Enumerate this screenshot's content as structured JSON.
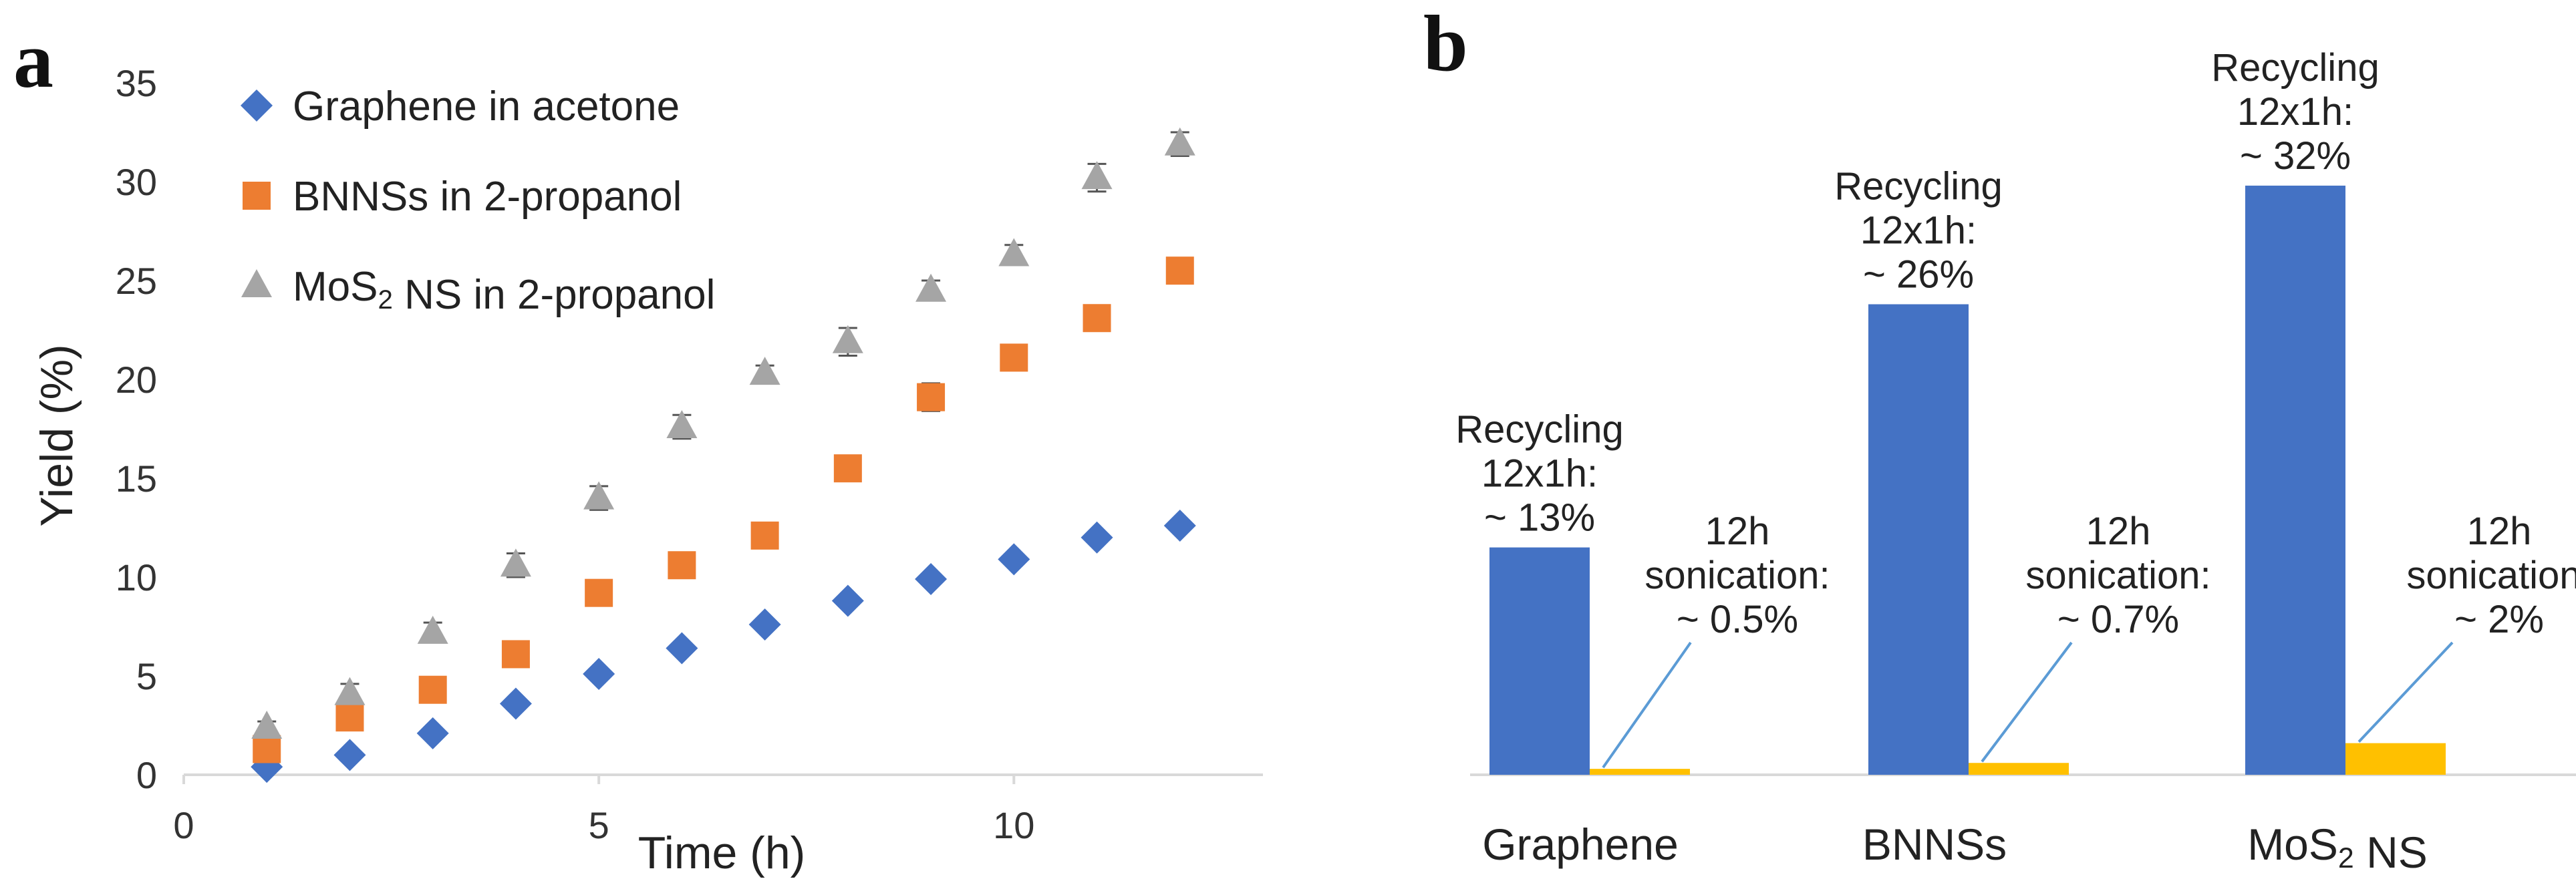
{
  "panel_a_label": "a",
  "panel_b_label": "b",
  "colors": {
    "graphene": "#4472C4",
    "bnns": "#ED7D31",
    "mos2": "#A5A5A5",
    "recycling_bar": "#4472C4",
    "sonication_bar": "#FFC000",
    "leader_line": "#5B9BD5",
    "axis": "#D9D9D9",
    "text": "#222222"
  },
  "chart_data": [
    {
      "type": "scatter",
      "xlabel": "Time (h)",
      "ylabel": "Yield (%)",
      "xlim": [
        0,
        13
      ],
      "ylim": [
        0,
        35
      ],
      "xticks": [
        0,
        5,
        10
      ],
      "yticks": [
        0,
        5,
        10,
        15,
        20,
        25,
        30,
        35
      ],
      "legend_position": "top-left",
      "series": [
        {
          "name": "Graphene in acetone",
          "marker": "diamond",
          "color_key": "graphene",
          "x": [
            1,
            2,
            3,
            4,
            5,
            6,
            7,
            8,
            9,
            10,
            11,
            12
          ],
          "y": [
            0.4,
            1.0,
            2.1,
            3.6,
            5.1,
            6.4,
            7.6,
            8.8,
            9.9,
            10.9,
            12.0,
            12.6
          ],
          "err": [
            0,
            0,
            0,
            0,
            0,
            0,
            0,
            0,
            0,
            0,
            0,
            0
          ]
        },
        {
          "name": "BNNSs in 2-propanol",
          "marker": "square",
          "color_key": "bnns",
          "x": [
            1,
            2,
            3,
            4,
            5,
            6,
            7,
            8,
            9,
            10,
            11,
            12
          ],
          "y": [
            1.3,
            2.9,
            4.3,
            6.1,
            9.2,
            10.6,
            12.1,
            15.5,
            19.1,
            21.1,
            23.1,
            25.5
          ],
          "err": [
            0.2,
            0.2,
            0.2,
            0.3,
            0.2,
            0.2,
            0.2,
            0.6,
            0.7,
            0.2,
            0.2,
            0.2
          ]
        },
        {
          "name": "MoS₂ NS in 2-propanol",
          "marker": "triangle",
          "color_key": "mos2",
          "x": [
            1,
            2,
            3,
            4,
            5,
            6,
            7,
            8,
            9,
            10,
            11,
            12
          ],
          "y": [
            2.4,
            4.1,
            7.2,
            10.6,
            14.0,
            17.6,
            20.3,
            21.9,
            24.5,
            26.3,
            30.2,
            31.9
          ],
          "err": [
            0.3,
            0.5,
            0.5,
            0.6,
            0.6,
            0.6,
            0.4,
            0.7,
            0.5,
            0.5,
            0.7,
            0.6
          ]
        }
      ]
    },
    {
      "type": "bar",
      "ylim": [
        0,
        35
      ],
      "categories": [
        "Graphene",
        "BNNSs",
        "MoS₂ NS"
      ],
      "series": [
        {
          "name": "Recycling 12x1h",
          "color_key": "recycling_bar",
          "values": [
            11.5,
            23.8,
            29.8
          ]
        },
        {
          "name": "12h sonication",
          "color_key": "sonication_bar",
          "values": [
            0.3,
            0.6,
            1.6
          ]
        }
      ],
      "annotations": {
        "recycling": [
          [
            "Recycling",
            "12x1h:",
            "~ 13%"
          ],
          [
            "Recycling",
            "12x1h:",
            "~ 26%"
          ],
          [
            "Recycling",
            "12x1h:",
            "~ 32%"
          ]
        ],
        "sonication": [
          [
            "12h",
            "sonication:",
            "~ 0.5%"
          ],
          [
            "12h",
            "sonication:",
            "~ 0.7%"
          ],
          [
            "12h",
            "sonication:",
            "~ 2%"
          ]
        ]
      }
    }
  ]
}
